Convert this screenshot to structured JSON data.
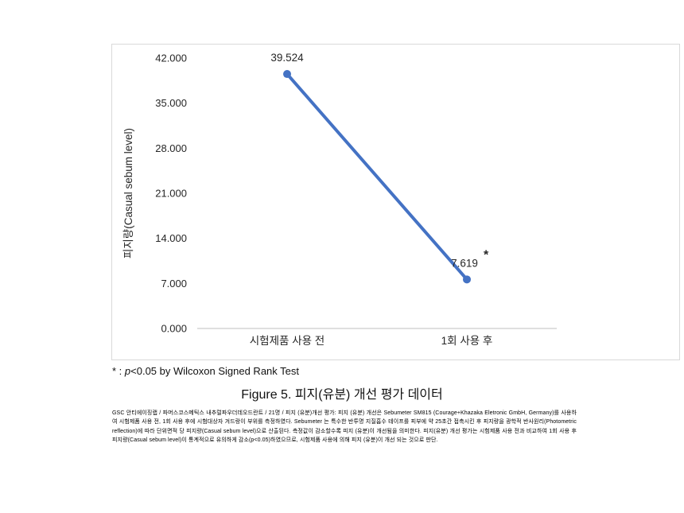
{
  "figure": {
    "caption": "Figure 5. 피지(유분) 개선 평가 데이터",
    "footnote": {
      "marker": "* : ",
      "p": "p",
      "rest": "<0.05 by Wilcoxon Signed Rank Test"
    },
    "description": "GSC 안티에이징랩 / 파머스코스메틱스 내추럴파우더데오드란트 / 21명 / 피지 (유분)개선 평가: 피지 (유분) 개선은 Sebumeter SM815 (Courage+Khazaka Eletronic GmbH, Germany)를 사용하여 시험제품 사용 전, 1회 사용 후에 시험대상자 겨드랑이 부위를 측정하였다. Sebumeter 는 특수한 반투명 지질흡수 테이프를 피부에 약 25초간 접촉시킨 후 피지량을 광학적 반사원리(Photometric reflection)에 따라 단위면적 당 피지량(Casual sebum level)으로 산출된다. 측정값이 감소할수록 피지 (유분)이 개선됨을 의미한다. 피지(유분) 개선 평가는 시험제품 사용 전과 비교하여 1회 사용 후 피지량(Casual sebum level)이 통계적으로 유의하게 감소(p<0.05)하였으므로, 시험제품 사용에 의해 피지 (유분)이 개선 되는 것으로 판단."
  },
  "chart_data": {
    "type": "line",
    "title": "",
    "categories": [
      "시험제품 사용 전",
      "1회 사용 후"
    ],
    "values": [
      39.524,
      7.619
    ],
    "point_labels": [
      "39.524",
      "7.619"
    ],
    "significance": [
      false,
      true
    ],
    "significance_marker": "*",
    "xlabel": "",
    "ylabel": "피지량(Casual sebum level)",
    "ylim": [
      0,
      42
    ],
    "ytick_step": 7,
    "ytick_decimals": 3,
    "grid": false,
    "legend": false,
    "line_color": "#4472C4",
    "marker_color": "#4472C4",
    "axis_line_color": "#bfbfbf"
  }
}
